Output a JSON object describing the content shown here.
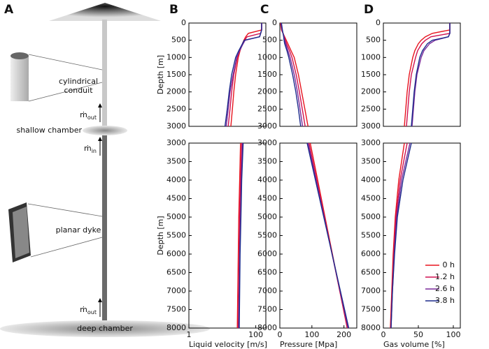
{
  "diagram": {
    "panel": "A",
    "conduit_label": [
      "cylindrical",
      "conduit"
    ],
    "shallow_label": "shallow chamber",
    "dyke_label": "planar dyke",
    "deep_label": "deep chamber",
    "flux_labels": [
      {
        "symbol": "ṁ",
        "sub": "out"
      },
      {
        "symbol": "ṁ",
        "sub": "in"
      },
      {
        "symbol": "ṁ",
        "sub": "out"
      }
    ]
  },
  "chart_data": [
    {
      "type": "line",
      "panel": "B",
      "xlog": true,
      "xlim": [
        1,
        200
      ],
      "ylim": [
        0,
        3000
      ],
      "y_inverted": true,
      "yticks": [
        0,
        500,
        1000,
        1500,
        2000,
        2500,
        3000
      ],
      "ylabel": "Depth [m]",
      "depth": [
        0,
        200,
        300,
        400,
        500,
        600,
        800,
        1000,
        1500,
        2000,
        2500,
        3000
      ],
      "series": [
        {
          "color": "#e8141e",
          "values": [
            150,
            150,
            60,
            50,
            44,
            40,
            34,
            30,
            25,
            22,
            20,
            18
          ]
        },
        {
          "color": "#d01050",
          "values": [
            150,
            150,
            140,
            55,
            46,
            40,
            33,
            28,
            22,
            19,
            17,
            15
          ]
        },
        {
          "color": "#7a2a9a",
          "values": [
            150,
            150,
            140,
            130,
            48,
            42,
            33,
            27,
            21,
            17,
            15,
            13
          ]
        },
        {
          "color": "#1c2a8c",
          "values": [
            150,
            150,
            140,
            130,
            45,
            40,
            31,
            25,
            19,
            16,
            14,
            12
          ]
        }
      ]
    },
    {
      "type": "line",
      "panel": "C",
      "xlim": [
        0,
        240
      ],
      "ylim": [
        0,
        3000
      ],
      "y_inverted": true,
      "yticks": [
        0,
        500,
        1000,
        1500,
        2000,
        2500,
        3000
      ],
      "depth": [
        0,
        200,
        300,
        400,
        500,
        600,
        800,
        1000,
        1500,
        2000,
        2500,
        3000
      ],
      "series": [
        {
          "color": "#e8141e",
          "values": [
            2,
            5,
            10,
            15,
            20,
            25,
            35,
            45,
            58,
            68,
            78,
            88
          ]
        },
        {
          "color": "#d01050",
          "values": [
            3,
            6,
            10,
            14,
            17,
            21,
            30,
            38,
            51,
            61,
            70,
            79
          ]
        },
        {
          "color": "#7a2a9a",
          "values": [
            4,
            7,
            10,
            13,
            15,
            18,
            25,
            32,
            45,
            55,
            63,
            71
          ]
        },
        {
          "color": "#1c2a8c",
          "values": [
            5,
            8,
            10,
            12,
            13,
            15,
            22,
            28,
            40,
            50,
            58,
            65
          ]
        }
      ]
    },
    {
      "type": "line",
      "panel": "D",
      "xlim": [
        0,
        110
      ],
      "ylim": [
        0,
        3000
      ],
      "y_inverted": true,
      "yticks": [
        0,
        500,
        1000,
        1500,
        2000,
        2500,
        3000
      ],
      "depth": [
        0,
        200,
        300,
        400,
        500,
        600,
        800,
        1000,
        1500,
        2000,
        2500,
        3000
      ],
      "series": [
        {
          "color": "#e8141e",
          "values": [
            95,
            95,
            70,
            60,
            54,
            50,
            45,
            42,
            37,
            34,
            32,
            30
          ]
        },
        {
          "color": "#d01050",
          "values": [
            95,
            95,
            95,
            68,
            60,
            55,
            49,
            46,
            40,
            37,
            35,
            33
          ]
        },
        {
          "color": "#7a2a9a",
          "values": [
            95,
            95,
            95,
            93,
            74,
            66,
            58,
            54,
            48,
            45,
            43,
            41
          ]
        },
        {
          "color": "#1c2a8c",
          "values": [
            95,
            95,
            95,
            93,
            70,
            63,
            56,
            52,
            47,
            44,
            42,
            40
          ]
        }
      ]
    },
    {
      "type": "line",
      "xlog": true,
      "xlim": [
        1,
        200
      ],
      "ylim": [
        3000,
        8000
      ],
      "y_inverted": true,
      "yticks": [
        3000,
        3500,
        4000,
        4500,
        5000,
        5500,
        6000,
        6500,
        7000,
        7500,
        8000
      ],
      "ylabel": "Depth [m]",
      "xticks": [
        1,
        100
      ],
      "xlabel": "Liquid velocity [m/s]",
      "depth": [
        3000,
        4000,
        5000,
        6000,
        7000,
        8000
      ],
      "series": [
        {
          "color": "#e8141e",
          "values": [
            35,
            33,
            31,
            30,
            29,
            28
          ]
        },
        {
          "color": "#d01050",
          "values": [
            38,
            35,
            33,
            32,
            31,
            30
          ]
        },
        {
          "color": "#7a2a9a",
          "values": [
            40,
            37,
            35,
            33,
            32,
            31
          ]
        },
        {
          "color": "#1c2a8c",
          "values": [
            42,
            38,
            36,
            34,
            33,
            32
          ]
        }
      ]
    },
    {
      "type": "line",
      "xlim": [
        0,
        240
      ],
      "ylim": [
        3000,
        8000
      ],
      "y_inverted": true,
      "yticks": [
        3000,
        3500,
        4000,
        4500,
        5000,
        5500,
        6000,
        6500,
        7000,
        7500,
        8000
      ],
      "xticks": [
        0,
        100,
        200
      ],
      "xlabel": "Pressure [Mpa]",
      "depth": [
        3000,
        4000,
        5000,
        6000,
        7000,
        8000
      ],
      "series": [
        {
          "color": "#e8141e",
          "values": [
            95,
            118,
            141,
            164,
            187,
            210
          ]
        },
        {
          "color": "#d01050",
          "values": [
            91,
            115,
            139,
            163,
            187,
            211
          ]
        },
        {
          "color": "#7a2a9a",
          "values": [
            88,
            113,
            138,
            163,
            188,
            213
          ]
        },
        {
          "color": "#1c2a8c",
          "values": [
            85,
            111,
            137,
            163,
            189,
            215
          ]
        }
      ]
    },
    {
      "type": "line",
      "xlim": [
        0,
        110
      ],
      "ylim": [
        3000,
        8000
      ],
      "y_inverted": true,
      "yticks": [
        3000,
        3500,
        4000,
        4500,
        5000,
        5500,
        6000,
        6500,
        7000,
        7500,
        8000
      ],
      "xticks": [
        0,
        50,
        100
      ],
      "xlabel": "Gas volume  [%]",
      "legend": "lower right",
      "depth": [
        3000,
        4000,
        5000,
        6000,
        7000,
        8000
      ],
      "series": [
        {
          "name": "0 h",
          "color": "#e8141e",
          "values": [
            30,
            22,
            17,
            14,
            12,
            10
          ]
        },
        {
          "name": "1.2 h",
          "color": "#d01050",
          "values": [
            34,
            24,
            18,
            15,
            12.5,
            10.5
          ]
        },
        {
          "name": "2.6 h",
          "color": "#7a2a9a",
          "values": [
            38,
            26,
            19,
            15.5,
            13,
            11
          ]
        },
        {
          "name": "3.8 h",
          "color": "#1c2a8c",
          "values": [
            40,
            28,
            20,
            16,
            13,
            11
          ]
        }
      ]
    }
  ]
}
